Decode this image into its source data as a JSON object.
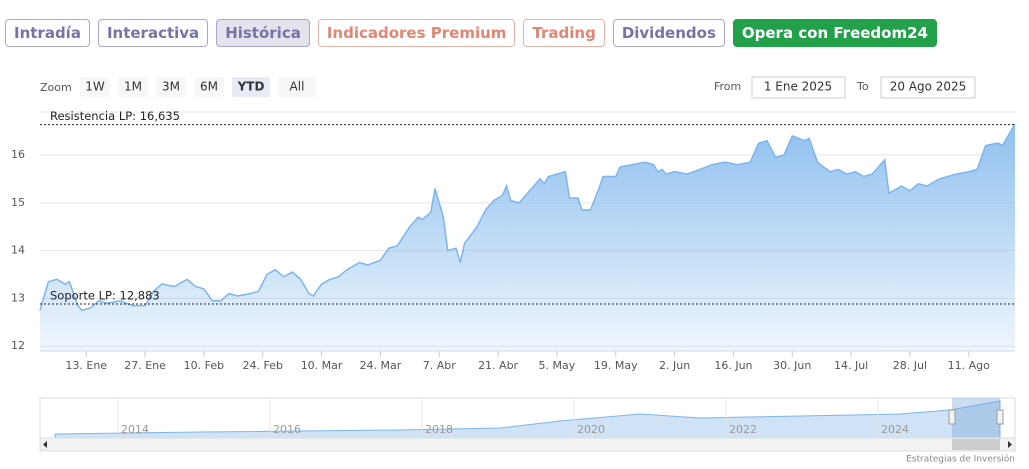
{
  "tabs": [
    "Intradía",
    "Interactiva",
    "Histórica",
    "Indicadores Premium",
    "Trading",
    "Dividendos",
    "Opera con Freedom24"
  ],
  "active_tab": 2,
  "zoom": {
    "label": "Zoom",
    "buttons": [
      "1W",
      "1M",
      "3M",
      "6M",
      "YTD",
      "All"
    ],
    "active": 4
  },
  "date_range": {
    "from_label": "From",
    "from": "1 Ene 2025",
    "to_label": "To",
    "to": "20 Ago 2025"
  },
  "chart_data": {
    "type": "area",
    "color": "#7cb5ec",
    "grid": true,
    "x": [
      2,
      4,
      6,
      8,
      9,
      11,
      12,
      14,
      16,
      18,
      21,
      24,
      27,
      29,
      31,
      34,
      37,
      39,
      41,
      43,
      45,
      47,
      49,
      52,
      54,
      56,
      58,
      60,
      62,
      64,
      66,
      67,
      69,
      71,
      73,
      75,
      78,
      80,
      83,
      85,
      87,
      90,
      92,
      93,
      95,
      96,
      98,
      99,
      101,
      102,
      103,
      106,
      108,
      110,
      112,
      113,
      114,
      116,
      118,
      121,
      122,
      123,
      125,
      127,
      128,
      130,
      131,
      133,
      135,
      136,
      139,
      140,
      143,
      146,
      148,
      149,
      150,
      151,
      153,
      156,
      159,
      162,
      165,
      168,
      171,
      173,
      175,
      177,
      179,
      181,
      184,
      185,
      187,
      190,
      192,
      194,
      196,
      198,
      200,
      203,
      204,
      207,
      209,
      211,
      213,
      216,
      218,
      220,
      223,
      225,
      227,
      230,
      231,
      234
    ],
    "values": [
      12.75,
      13.35,
      13.4,
      13.3,
      13.35,
      12.85,
      12.75,
      12.8,
      12.95,
      12.9,
      12.95,
      12.85,
      12.85,
      13.15,
      13.3,
      13.25,
      13.4,
      13.25,
      13.2,
      12.95,
      12.95,
      13.1,
      13.05,
      13.1,
      13.15,
      13.5,
      13.6,
      13.45,
      13.55,
      13.4,
      13.1,
      13.05,
      13.3,
      13.4,
      13.45,
      13.6,
      13.75,
      13.7,
      13.8,
      14.05,
      14.1,
      14.5,
      14.7,
      14.65,
      14.8,
      15.3,
      14.7,
      14.0,
      14.05,
      13.75,
      14.15,
      14.5,
      14.85,
      15.05,
      15.15,
      15.35,
      15.05,
      15.0,
      15.2,
      15.5,
      15.4,
      15.55,
      15.6,
      15.65,
      15.1,
      15.1,
      14.85,
      14.85,
      15.3,
      15.55,
      15.55,
      15.75,
      15.8,
      15.85,
      15.8,
      15.65,
      15.7,
      15.6,
      15.65,
      15.6,
      15.7,
      15.8,
      15.85,
      15.8,
      15.85,
      16.25,
      16.3,
      15.95,
      16.0,
      16.4,
      16.3,
      16.35,
      15.85,
      15.65,
      15.7,
      15.6,
      15.65,
      15.55,
      15.6,
      15.9,
      15.2,
      15.35,
      15.25,
      15.4,
      15.35,
      15.5,
      15.55,
      15.6,
      15.65,
      15.7,
      16.2,
      16.25,
      16.2,
      16.65
    ],
    "xlim": [
      2,
      234
    ],
    "xticks": [
      {
        "value": 13,
        "label": "13. Ene"
      },
      {
        "value": 27,
        "label": "27. Ene"
      },
      {
        "value": 41,
        "label": "10. Feb"
      },
      {
        "value": 55,
        "label": "24. Feb"
      },
      {
        "value": 69,
        "label": "10. Mar"
      },
      {
        "value": 83,
        "label": "24. Mar"
      },
      {
        "value": 97,
        "label": "7. Abr"
      },
      {
        "value": 111,
        "label": "21. Abr"
      },
      {
        "value": 125,
        "label": "5. May"
      },
      {
        "value": 139,
        "label": "19. May"
      },
      {
        "value": 153,
        "label": "2. Jun"
      },
      {
        "value": 167,
        "label": "16. Jun"
      },
      {
        "value": 181,
        "label": "30. Jun"
      },
      {
        "value": 195,
        "label": "14. Jul"
      },
      {
        "value": 209,
        "label": "28. Jul"
      },
      {
        "value": 223,
        "label": "11. Ago"
      }
    ],
    "ylim": [
      11.9,
      16.9
    ],
    "yticks": [
      12,
      13,
      14,
      15,
      16
    ],
    "plot_lines": [
      {
        "value": 16.635,
        "label": "Resistencia LP: 16,635"
      },
      {
        "value": 12.883,
        "label": "Soporte LP: 12,883"
      }
    ],
    "navigator": {
      "labels": [
        "2014",
        "2016",
        "2018",
        "2020",
        "2022",
        "2024"
      ]
    }
  },
  "credit": "Estrategias de Inversión"
}
